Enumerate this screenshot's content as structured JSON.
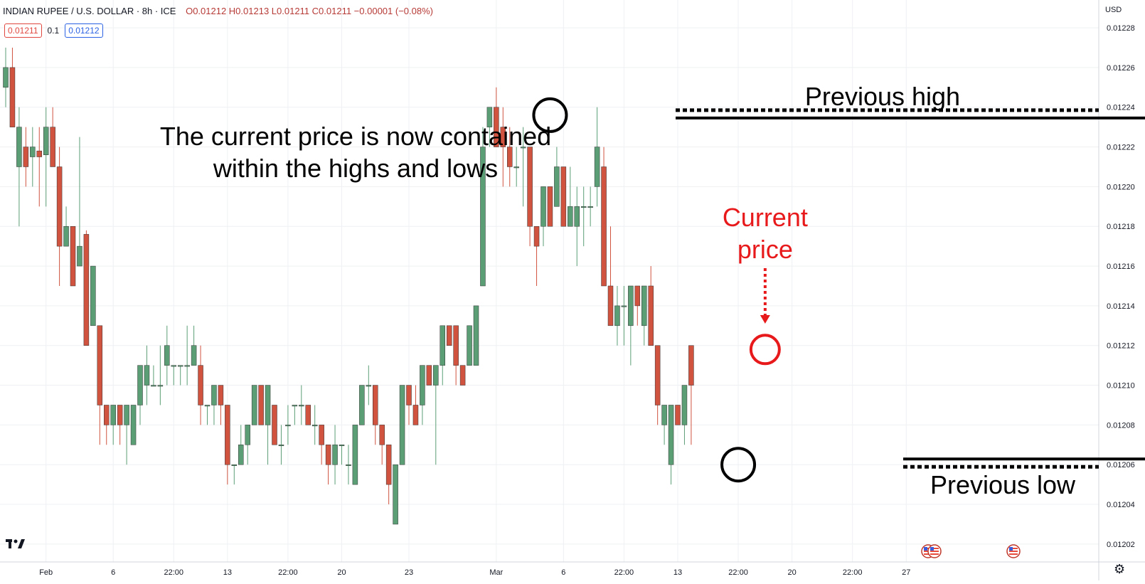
{
  "header": {
    "symbol": "INDIAN RUPEE / U.S. DOLLAR · 8h · ICE",
    "ohlc": "O0.01212 H0.01213 L0.01211 C0.01211 −0.00001 (−0.08%)",
    "bid": "0.01211",
    "spread": "0.1",
    "ask": "0.01212"
  },
  "currency_label": "USD",
  "colors": {
    "up": "#5b9e76",
    "down": "#d0533f",
    "grid": "#eef0f3",
    "annotation": "#000000",
    "highlight": "#e8191b"
  },
  "annotations": {
    "main_text": [
      "The current price is now contained",
      "within the highs and lows"
    ],
    "previous_high": "Previous high",
    "previous_low": "Previous low",
    "current_price": [
      "Current",
      "price"
    ]
  },
  "chart_data": {
    "type": "candlestick",
    "y_axis": {
      "range": [
        0.012011,
        0.012294
      ],
      "ticks": [
        "0.01228",
        "0.01226",
        "0.01224",
        "0.01222",
        "0.01220",
        "0.01218",
        "0.01216",
        "0.01214",
        "0.01212",
        "0.01210",
        "0.01208",
        "0.01206",
        "0.01204",
        "0.01202"
      ],
      "tick_values": [
        0.01228,
        0.01226,
        0.01224,
        0.01222,
        0.0122,
        0.01218,
        0.01216,
        0.01214,
        0.01212,
        0.0121,
        0.01208,
        0.01206,
        0.01204,
        0.01202
      ]
    },
    "x_axis": {
      "labels": [
        {
          "text": "Feb",
          "index": 6
        },
        {
          "text": "6",
          "index": 16
        },
        {
          "text": "22:00",
          "index": 25
        },
        {
          "text": "13",
          "index": 33
        },
        {
          "text": "22:00",
          "index": 42
        },
        {
          "text": "20",
          "index": 50
        },
        {
          "text": "23",
          "index": 60
        },
        {
          "text": "Mar",
          "index": 73
        },
        {
          "text": "6",
          "index": 83
        },
        {
          "text": "22:00",
          "index": 92
        },
        {
          "text": "13",
          "index": 100
        },
        {
          "text": "22:00",
          "index": 109
        },
        {
          "text": "20",
          "index": 117
        },
        {
          "text": "22:00",
          "index": 126
        },
        {
          "text": "27",
          "index": 134
        }
      ]
    },
    "levels": {
      "previous_high": 0.012236,
      "previous_low": 0.01206
    },
    "circles": [
      {
        "index": 81,
        "price": 0.012236,
        "color": "black"
      },
      {
        "index": 109,
        "price": 0.01206,
        "color": "black"
      },
      {
        "index": 113,
        "price": 0.012118,
        "color": "red"
      }
    ],
    "candles": [
      {
        "o": 0.01225,
        "h": 0.01227,
        "l": 0.01224,
        "c": 0.01226
      },
      {
        "o": 0.01226,
        "h": 0.01227,
        "l": 0.01223,
        "c": 0.01223
      },
      {
        "o": 0.01221,
        "h": 0.01224,
        "l": 0.01218,
        "c": 0.01223
      },
      {
        "o": 0.01222,
        "h": 0.01223,
        "l": 0.0122,
        "c": 0.01221
      },
      {
        "o": 0.012215,
        "h": 0.01223,
        "l": 0.0122,
        "c": 0.01222
      },
      {
        "o": 0.012218,
        "h": 0.01223,
        "l": 0.01219,
        "c": 0.012215
      },
      {
        "o": 0.012216,
        "h": 0.01224,
        "l": 0.01219,
        "c": 0.01223
      },
      {
        "o": 0.01223,
        "h": 0.01224,
        "l": 0.01221,
        "c": 0.01221
      },
      {
        "o": 0.01221,
        "h": 0.01222,
        "l": 0.01215,
        "c": 0.01217
      },
      {
        "o": 0.01217,
        "h": 0.01219,
        "l": 0.01217,
        "c": 0.01218
      },
      {
        "o": 0.01218,
        "h": 0.01218,
        "l": 0.01215,
        "c": 0.01215
      },
      {
        "o": 0.01216,
        "h": 0.012225,
        "l": 0.01216,
        "c": 0.01217
      },
      {
        "o": 0.012176,
        "h": 0.012178,
        "l": 0.01212,
        "c": 0.01212
      },
      {
        "o": 0.01213,
        "h": 0.01216,
        "l": 0.01213,
        "c": 0.01216
      },
      {
        "o": 0.01213,
        "h": 0.01213,
        "l": 0.01207,
        "c": 0.01209
      },
      {
        "o": 0.01209,
        "h": 0.01209,
        "l": 0.01207,
        "c": 0.01208
      },
      {
        "o": 0.01208,
        "h": 0.01209,
        "l": 0.01207,
        "c": 0.01209
      },
      {
        "o": 0.01209,
        "h": 0.01209,
        "l": 0.01207,
        "c": 0.01208
      },
      {
        "o": 0.01208,
        "h": 0.01209,
        "l": 0.01206,
        "c": 0.01209
      },
      {
        "o": 0.01207,
        "h": 0.01209,
        "l": 0.01207,
        "c": 0.01209
      },
      {
        "o": 0.01209,
        "h": 0.01211,
        "l": 0.01208,
        "c": 0.01211
      },
      {
        "o": 0.0121,
        "h": 0.01212,
        "l": 0.01209,
        "c": 0.01211
      },
      {
        "o": 0.0121,
        "h": 0.01211,
        "l": 0.0121,
        "c": 0.0121
      },
      {
        "o": 0.0121,
        "h": 0.01212,
        "l": 0.01209,
        "c": 0.0121
      },
      {
        "o": 0.01211,
        "h": 0.01213,
        "l": 0.0121,
        "c": 0.01212
      },
      {
        "o": 0.01211,
        "h": 0.01211,
        "l": 0.0121,
        "c": 0.01211
      },
      {
        "o": 0.01211,
        "h": 0.01211,
        "l": 0.0121,
        "c": 0.01211
      },
      {
        "o": 0.01211,
        "h": 0.01213,
        "l": 0.0121,
        "c": 0.01211
      },
      {
        "o": 0.01211,
        "h": 0.01213,
        "l": 0.01211,
        "c": 0.01212
      },
      {
        "o": 0.01211,
        "h": 0.01212,
        "l": 0.01208,
        "c": 0.01209
      },
      {
        "o": 0.01209,
        "h": 0.01209,
        "l": 0.01208,
        "c": 0.01209
      },
      {
        "o": 0.01209,
        "h": 0.0121,
        "l": 0.01208,
        "c": 0.0121
      },
      {
        "o": 0.0121,
        "h": 0.0121,
        "l": 0.01208,
        "c": 0.01209
      },
      {
        "o": 0.01209,
        "h": 0.01209,
        "l": 0.01205,
        "c": 0.01206
      },
      {
        "o": 0.01206,
        "h": 0.01206,
        "l": 0.01205,
        "c": 0.01206
      },
      {
        "o": 0.01206,
        "h": 0.01208,
        "l": 0.01206,
        "c": 0.01207
      },
      {
        "o": 0.01207,
        "h": 0.01208,
        "l": 0.01206,
        "c": 0.01208
      },
      {
        "o": 0.01208,
        "h": 0.0121,
        "l": 0.01208,
        "c": 0.0121
      },
      {
        "o": 0.0121,
        "h": 0.0121,
        "l": 0.01208,
        "c": 0.01208
      },
      {
        "o": 0.01208,
        "h": 0.0121,
        "l": 0.01206,
        "c": 0.0121
      },
      {
        "o": 0.01209,
        "h": 0.01209,
        "l": 0.01207,
        "c": 0.01207
      },
      {
        "o": 0.01207,
        "h": 0.01208,
        "l": 0.01206,
        "c": 0.01207
      },
      {
        "o": 0.01208,
        "h": 0.01209,
        "l": 0.01207,
        "c": 0.01208
      },
      {
        "o": 0.01209,
        "h": 0.01209,
        "l": 0.01208,
        "c": 0.01209
      },
      {
        "o": 0.01209,
        "h": 0.0121,
        "l": 0.01208,
        "c": 0.01209
      },
      {
        "o": 0.01209,
        "h": 0.01209,
        "l": 0.01208,
        "c": 0.01208
      },
      {
        "o": 0.01208,
        "h": 0.01209,
        "l": 0.01207,
        "c": 0.01208
      },
      {
        "o": 0.01208,
        "h": 0.01208,
        "l": 0.01206,
        "c": 0.01207
      },
      {
        "o": 0.01207,
        "h": 0.01207,
        "l": 0.01205,
        "c": 0.01206
      },
      {
        "o": 0.01206,
        "h": 0.01208,
        "l": 0.01205,
        "c": 0.01207
      },
      {
        "o": 0.01207,
        "h": 0.01207,
        "l": 0.01206,
        "c": 0.01207
      },
      {
        "o": 0.01206,
        "h": 0.01207,
        "l": 0.01205,
        "c": 0.01206
      },
      {
        "o": 0.01205,
        "h": 0.01208,
        "l": 0.01205,
        "c": 0.01208
      },
      {
        "o": 0.01208,
        "h": 0.0121,
        "l": 0.01208,
        "c": 0.0121
      },
      {
        "o": 0.0121,
        "h": 0.01211,
        "l": 0.01209,
        "c": 0.0121
      },
      {
        "o": 0.0121,
        "h": 0.0121,
        "l": 0.01207,
        "c": 0.01208
      },
      {
        "o": 0.01208,
        "h": 0.01208,
        "l": 0.01206,
        "c": 0.01207
      },
      {
        "o": 0.01207,
        "h": 0.01207,
        "l": 0.01204,
        "c": 0.01205
      },
      {
        "o": 0.01203,
        "h": 0.01206,
        "l": 0.01203,
        "c": 0.01206
      },
      {
        "o": 0.01206,
        "h": 0.0121,
        "l": 0.01206,
        "c": 0.0121
      },
      {
        "o": 0.0121,
        "h": 0.0121,
        "l": 0.01208,
        "c": 0.01209
      },
      {
        "o": 0.01209,
        "h": 0.0121,
        "l": 0.01208,
        "c": 0.01208
      },
      {
        "o": 0.01209,
        "h": 0.01211,
        "l": 0.01208,
        "c": 0.01211
      },
      {
        "o": 0.01211,
        "h": 0.01211,
        "l": 0.0121,
        "c": 0.0121
      },
      {
        "o": 0.0121,
        "h": 0.01211,
        "l": 0.01206,
        "c": 0.01211
      },
      {
        "o": 0.01211,
        "h": 0.01213,
        "l": 0.0121,
        "c": 0.01213
      },
      {
        "o": 0.01213,
        "h": 0.01213,
        "l": 0.01212,
        "c": 0.01212
      },
      {
        "o": 0.01213,
        "h": 0.01213,
        "l": 0.0121,
        "c": 0.01211
      },
      {
        "o": 0.01211,
        "h": 0.01211,
        "l": 0.0121,
        "c": 0.0121
      },
      {
        "o": 0.01211,
        "h": 0.01213,
        "l": 0.01211,
        "c": 0.01213
      },
      {
        "o": 0.01211,
        "h": 0.01214,
        "l": 0.01211,
        "c": 0.01214
      },
      {
        "o": 0.01215,
        "h": 0.01223,
        "l": 0.01215,
        "c": 0.01222
      },
      {
        "o": 0.01223,
        "h": 0.01224,
        "l": 0.01222,
        "c": 0.01224
      },
      {
        "o": 0.01224,
        "h": 0.01225,
        "l": 0.01222,
        "c": 0.01222
      },
      {
        "o": 0.01223,
        "h": 0.01224,
        "l": 0.0122,
        "c": 0.01222
      },
      {
        "o": 0.01222,
        "h": 0.01223,
        "l": 0.0122,
        "c": 0.01221
      },
      {
        "o": 0.01221,
        "h": 0.01222,
        "l": 0.0122,
        "c": 0.01221
      },
      {
        "o": 0.01222,
        "h": 0.01223,
        "l": 0.01219,
        "c": 0.01222
      },
      {
        "o": 0.01222,
        "h": 0.01222,
        "l": 0.01217,
        "c": 0.01218
      },
      {
        "o": 0.01218,
        "h": 0.01218,
        "l": 0.01215,
        "c": 0.01217
      },
      {
        "o": 0.01218,
        "h": 0.0122,
        "l": 0.01217,
        "c": 0.0122
      },
      {
        "o": 0.0122,
        "h": 0.0122,
        "l": 0.01218,
        "c": 0.01218
      },
      {
        "o": 0.01219,
        "h": 0.01222,
        "l": 0.01219,
        "c": 0.01221
      },
      {
        "o": 0.01221,
        "h": 0.01221,
        "l": 0.01218,
        "c": 0.01218
      },
      {
        "o": 0.01218,
        "h": 0.01221,
        "l": 0.01218,
        "c": 0.01219
      },
      {
        "o": 0.01218,
        "h": 0.0122,
        "l": 0.01216,
        "c": 0.01219
      },
      {
        "o": 0.01219,
        "h": 0.0122,
        "l": 0.01217,
        "c": 0.01219
      },
      {
        "o": 0.01219,
        "h": 0.0122,
        "l": 0.01218,
        "c": 0.01219
      },
      {
        "o": 0.0122,
        "h": 0.01224,
        "l": 0.01219,
        "c": 0.01222
      },
      {
        "o": 0.01221,
        "h": 0.01222,
        "l": 0.01215,
        "c": 0.01215
      },
      {
        "o": 0.01215,
        "h": 0.01218,
        "l": 0.01213,
        "c": 0.01213
      },
      {
        "o": 0.01213,
        "h": 0.01215,
        "l": 0.01212,
        "c": 0.01214
      },
      {
        "o": 0.01214,
        "h": 0.01215,
        "l": 0.01212,
        "c": 0.01214
      },
      {
        "o": 0.01213,
        "h": 0.01215,
        "l": 0.01211,
        "c": 0.01215
      },
      {
        "o": 0.01215,
        "h": 0.01215,
        "l": 0.01213,
        "c": 0.01214
      },
      {
        "o": 0.01213,
        "h": 0.01215,
        "l": 0.01212,
        "c": 0.01215
      },
      {
        "o": 0.01215,
        "h": 0.01216,
        "l": 0.01212,
        "c": 0.01212
      },
      {
        "o": 0.01212,
        "h": 0.01212,
        "l": 0.01208,
        "c": 0.01209
      },
      {
        "o": 0.01208,
        "h": 0.01209,
        "l": 0.01207,
        "c": 0.01209
      },
      {
        "o": 0.01206,
        "h": 0.01209,
        "l": 0.01205,
        "c": 0.01209
      },
      {
        "o": 0.01209,
        "h": 0.01209,
        "l": 0.01208,
        "c": 0.01208
      },
      {
        "o": 0.01208,
        "h": 0.0121,
        "l": 0.01207,
        "c": 0.0121
      },
      {
        "o": 0.01212,
        "h": 0.01212,
        "l": 0.01207,
        "c": 0.0121
      }
    ]
  }
}
